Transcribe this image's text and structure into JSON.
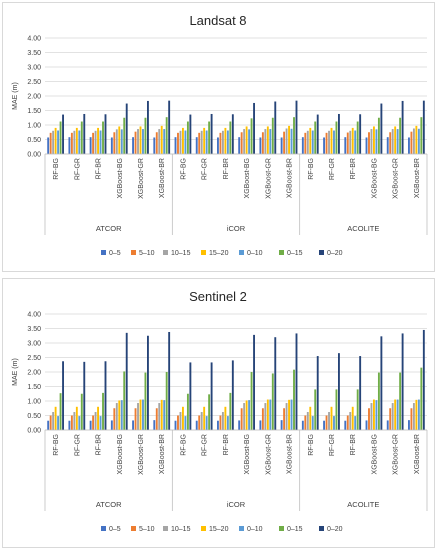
{
  "colors": {
    "0-5": "#4472c4",
    "5-10": "#ed7d31",
    "10-15": "#a5a5a5",
    "15-20": "#ffc000",
    "0-10": "#5b9bd5",
    "0-15": "#70ad47",
    "0-20": "#264478"
  },
  "chart_data": [
    {
      "type": "bar",
      "title": "Landsat 8",
      "ylabel": "MAE (m)",
      "xlabel": "",
      "ylim": [
        0,
        4
      ],
      "yticks": [
        "0.00",
        "0.50",
        "1.00",
        "1.50",
        "2.00",
        "2.50",
        "3.00",
        "3.50",
        "4.00"
      ],
      "grid": true,
      "legend": "bottom",
      "groups": [
        {
          "name": "ATCOR",
          "categories": [
            "RF-BG",
            "RF-GR",
            "RF-BR",
            "XGBoost-BG",
            "XGBoost-GR",
            "XGBoost-BR"
          ]
        },
        {
          "name": "iCOR",
          "categories": [
            "RF-BG",
            "RF-GR",
            "RF-BR",
            "XGBoost-BG",
            "XGBoost-GR",
            "XGBoost-BR"
          ]
        },
        {
          "name": "ACOLITE",
          "categories": [
            "RF-BG",
            "RF-GR",
            "RF-BR",
            "XGBoost-BG",
            "XGBoost-GR",
            "XGBoost-BR"
          ]
        }
      ],
      "series": [
        {
          "name": "0–5",
          "values": [
            0.57,
            0.58,
            0.58,
            0.57,
            0.58,
            0.57,
            0.58,
            0.58,
            0.57,
            0.58,
            0.57,
            0.57,
            0.58,
            0.57,
            0.58,
            0.57,
            0.58,
            0.57
          ]
        },
        {
          "name": "5–10",
          "values": [
            0.73,
            0.73,
            0.73,
            0.75,
            0.77,
            0.75,
            0.73,
            0.73,
            0.73,
            0.75,
            0.75,
            0.77,
            0.73,
            0.73,
            0.74,
            0.75,
            0.75,
            0.77
          ]
        },
        {
          "name": "10–15",
          "values": [
            0.8,
            0.8,
            0.8,
            0.85,
            0.86,
            0.86,
            0.8,
            0.8,
            0.8,
            0.86,
            0.86,
            0.88,
            0.8,
            0.8,
            0.8,
            0.86,
            0.86,
            0.88
          ]
        },
        {
          "name": "15–20",
          "values": [
            0.9,
            0.9,
            0.9,
            0.95,
            0.95,
            0.97,
            0.9,
            0.9,
            0.9,
            0.95,
            0.95,
            0.97,
            0.9,
            0.9,
            0.9,
            0.95,
            0.95,
            0.97
          ]
        },
        {
          "name": "0–10",
          "values": [
            0.81,
            0.81,
            0.81,
            0.85,
            0.86,
            0.86,
            0.81,
            0.81,
            0.81,
            0.85,
            0.86,
            0.87,
            0.81,
            0.81,
            0.81,
            0.85,
            0.86,
            0.87
          ]
        },
        {
          "name": "0–15",
          "values": [
            1.12,
            1.12,
            1.12,
            1.25,
            1.25,
            1.27,
            1.12,
            1.12,
            1.12,
            1.23,
            1.25,
            1.27,
            1.12,
            1.12,
            1.12,
            1.25,
            1.25,
            1.27
          ]
        },
        {
          "name": "0–20",
          "values": [
            1.36,
            1.38,
            1.37,
            1.74,
            1.83,
            1.84,
            1.36,
            1.38,
            1.37,
            1.76,
            1.81,
            1.84,
            1.36,
            1.38,
            1.37,
            1.74,
            1.83,
            1.84
          ]
        }
      ]
    },
    {
      "type": "bar",
      "title": "Sentinel 2",
      "ylabel": "MAE (m)",
      "xlabel": "",
      "ylim": [
        0,
        4
      ],
      "yticks": [
        "0.00",
        "0.50",
        "1.00",
        "1.50",
        "2.00",
        "2.50",
        "3.00",
        "3.50",
        "4.00"
      ],
      "grid": true,
      "legend": "bottom",
      "groups": [
        {
          "name": "ATCOR",
          "categories": [
            "RF-BG",
            "RF-GR",
            "RF-BR",
            "XGBoost-BG",
            "XGBoost-GR",
            "XGBoost-BR"
          ]
        },
        {
          "name": "iCOR",
          "categories": [
            "RF-BG",
            "RF-GR",
            "RF-BR",
            "XGBoost-BG",
            "XGBoost-GR",
            "XGBoost-BR"
          ]
        },
        {
          "name": "ACOLITE",
          "categories": [
            "RF-BG",
            "RF-GR",
            "RF-BR",
            "XGBoost-BG",
            "XGBoost-GR",
            "XGBoost-BR"
          ]
        }
      ],
      "series": [
        {
          "name": "0–5",
          "values": [
            0.32,
            0.32,
            0.32,
            0.33,
            0.33,
            0.34,
            0.32,
            0.32,
            0.32,
            0.33,
            0.33,
            0.34,
            0.32,
            0.32,
            0.32,
            0.33,
            0.33,
            0.34
          ]
        },
        {
          "name": "5–10",
          "values": [
            0.5,
            0.5,
            0.5,
            0.75,
            0.75,
            0.75,
            0.5,
            0.5,
            0.5,
            0.75,
            0.75,
            0.75,
            0.5,
            0.5,
            0.5,
            0.75,
            0.75,
            0.75
          ]
        },
        {
          "name": "10–15",
          "values": [
            0.62,
            0.62,
            0.62,
            0.93,
            0.93,
            0.93,
            0.62,
            0.62,
            0.62,
            0.93,
            0.93,
            0.93,
            0.62,
            0.62,
            0.62,
            0.93,
            0.93,
            0.93
          ]
        },
        {
          "name": "15–20",
          "values": [
            0.8,
            0.8,
            0.8,
            1.02,
            1.05,
            1.04,
            0.8,
            0.8,
            0.8,
            1.02,
            1.05,
            1.04,
            0.8,
            0.8,
            0.8,
            1.05,
            1.05,
            1.04
          ]
        },
        {
          "name": "0–10",
          "values": [
            0.48,
            0.48,
            0.48,
            1.03,
            1.05,
            1.03,
            0.48,
            0.48,
            0.48,
            1.03,
            1.05,
            1.05,
            0.48,
            0.48,
            0.48,
            1.03,
            1.05,
            1.05
          ]
        },
        {
          "name": "0–15",
          "values": [
            1.27,
            1.25,
            1.28,
            2.02,
            1.98,
            2.0,
            1.25,
            1.23,
            1.28,
            2.0,
            1.95,
            2.08,
            1.4,
            1.4,
            1.4,
            1.98,
            1.98,
            2.15
          ]
        },
        {
          "name": "0–20",
          "values": [
            2.37,
            2.35,
            2.37,
            3.35,
            3.25,
            3.38,
            2.33,
            2.33,
            2.4,
            3.28,
            3.2,
            3.33,
            2.55,
            2.65,
            2.55,
            3.23,
            3.33,
            3.45
          ]
        }
      ]
    }
  ]
}
